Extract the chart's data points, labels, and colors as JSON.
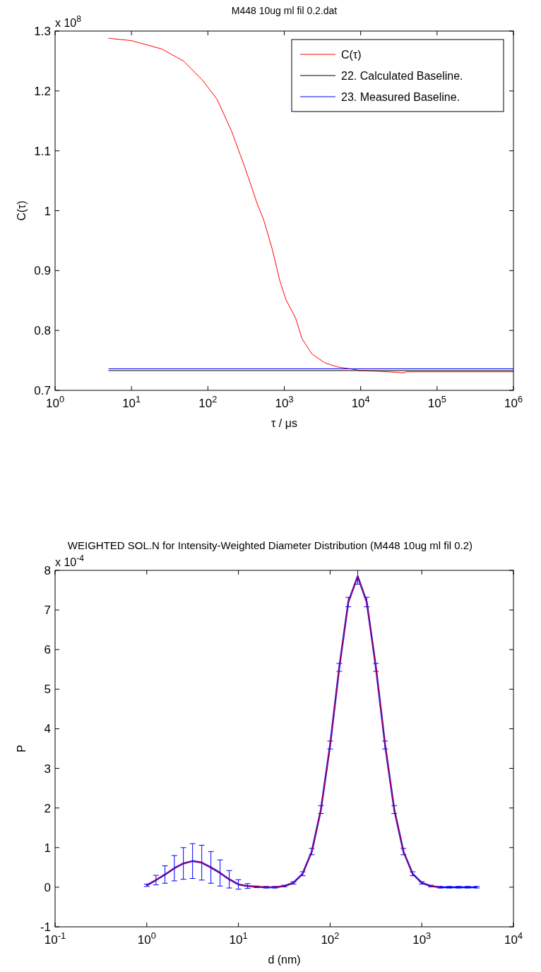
{
  "chart_data": [
    {
      "type": "line",
      "title": "M448 10ug ml fil 0.2.dat",
      "xlabel": "τ / μs",
      "ylabel": "C(τ)",
      "annotations": [
        "x 10$^{8}$"
      ],
      "log": "x",
      "legend": "top right",
      "xlim": [
        1,
        1000000
      ],
      "xticks": [
        {
          "value": 1,
          "label": "10$^{0}$"
        },
        {
          "value": 10,
          "label": "10$^{1}$"
        },
        {
          "value": 100,
          "label": "10$^{2}$"
        },
        {
          "value": 1000,
          "label": "10$^{3}$"
        },
        {
          "value": 10000,
          "label": "10$^{4}$"
        },
        {
          "value": 100000,
          "label": "10$^{5}$"
        },
        {
          "value": 1000000,
          "label": "10$^{6}$"
        }
      ],
      "ylim": [
        0.7,
        1.3
      ],
      "yticks": [
        0.7,
        0.8,
        0.9,
        1,
        1.1,
        1.2,
        1.3
      ],
      "series": [
        {
          "name": "C(τ)",
          "color": "#ff0000",
          "x": [
            5,
            10,
            25,
            48,
            85,
            132,
            204,
            302,
            447,
            537,
            692,
            871,
            1047,
            1413,
            1698,
            2291,
            3388,
            5012,
            7244,
            10000,
            15849,
            31623,
            35481,
            39811,
            100000,
            316228,
            1000000
          ],
          "values": [
            1.288,
            1.284,
            1.27,
            1.25,
            1.218,
            1.186,
            1.133,
            1.074,
            1.01,
            0.985,
            0.937,
            0.884,
            0.852,
            0.82,
            0.787,
            0.761,
            0.746,
            0.739,
            0.736,
            0.733,
            0.732,
            0.73,
            0.729,
            0.731,
            0.731,
            0.731,
            0.731
          ]
        },
        {
          "name": "22. Calculated Baseline.",
          "color": "#000000",
          "x": [
            5,
            1000000
          ],
          "values": [
            0.733,
            0.733
          ]
        },
        {
          "name": "23. Measured Baseline.",
          "color": "#0000ff",
          "x": [
            5,
            1000000
          ],
          "values": [
            0.736,
            0.736
          ]
        }
      ]
    },
    {
      "type": "line",
      "title": "WEIGHTED SOL.N for Intensity-Weighted Diameter Distribution (M448 10ug ml fil 0.2)",
      "xlabel": "d (nm)",
      "ylabel": "P",
      "annotations": [
        "x 10$^{-4}$"
      ],
      "log": "x",
      "xlim": [
        0.1,
        10000
      ],
      "xticks": [
        {
          "value": 0.1,
          "label": "10$^{-1}$"
        },
        {
          "value": 1,
          "label": "10$^{0}$"
        },
        {
          "value": 10,
          "label": "10$^{1}$"
        },
        {
          "value": 100,
          "label": "10$^{2}$"
        },
        {
          "value": 1000,
          "label": "10$^{3}$"
        },
        {
          "value": 10000,
          "label": "10$^{4}$"
        }
      ],
      "ylim": [
        -1,
        8
      ],
      "yticks": [
        -1,
        0,
        1,
        2,
        3,
        4,
        5,
        6,
        7,
        8
      ],
      "series": [
        {
          "color": "#0000ff",
          "x": [
            1,
            1.26,
            1.58,
            2,
            2.51,
            3.16,
            3.98,
            5.01,
            6.31,
            7.94,
            10,
            12.6,
            15.8,
            20,
            25.1,
            31.6,
            39.8,
            50.1,
            63.1,
            79.4,
            100,
            126,
            158,
            200,
            251,
            316,
            398,
            501,
            631,
            794,
            1000,
            1259,
            1585,
            1995,
            2512,
            3162,
            3981
          ],
          "values": [
            0.05,
            0.18,
            0.32,
            0.48,
            0.6,
            0.66,
            0.62,
            0.5,
            0.36,
            0.2,
            0.07,
            0.03,
            0.01,
            0,
            0,
            0.03,
            0.11,
            0.34,
            0.9,
            1.96,
            3.59,
            5.55,
            7.2,
            7.85,
            7.2,
            5.55,
            3.59,
            1.96,
            0.9,
            0.34,
            0.11,
            0.03,
            0,
            0,
            0,
            0,
            0
          ],
          "errors": [
            0.03,
            0.12,
            0.22,
            0.32,
            0.4,
            0.44,
            0.44,
            0.4,
            0.33,
            0.22,
            0.12,
            0.06,
            0.02,
            0.02,
            0.02,
            0.02,
            0.03,
            0.05,
            0.08,
            0.1,
            0.1,
            0.1,
            0.12,
            0.2,
            0.12,
            0.1,
            0.1,
            0.1,
            0.08,
            0.05,
            0.03,
            0.02,
            0.02,
            0.02,
            0.02,
            0.02,
            0.02
          ]
        },
        {
          "color": "#ff0000",
          "x": [
            1,
            1.26,
            1.58,
            2,
            2.51,
            3.16,
            3.98,
            5.01,
            6.31,
            7.94,
            10,
            12.6,
            15.8,
            20,
            25.1,
            31.6,
            39.8,
            50.1,
            63.1,
            79.4,
            100,
            126,
            158,
            200,
            251,
            316,
            398,
            501,
            631,
            794,
            1000,
            1259,
            1585
          ],
          "values": [
            0.05,
            0.18,
            0.32,
            0.48,
            0.6,
            0.66,
            0.62,
            0.5,
            0.36,
            0.2,
            0.07,
            0.03,
            0.01,
            0,
            0,
            0.03,
            0.11,
            0.34,
            0.9,
            1.96,
            3.59,
            5.55,
            7.2,
            7.85,
            7.2,
            5.55,
            3.59,
            1.96,
            0.9,
            0.34,
            0.11,
            0.03,
            0
          ]
        }
      ]
    }
  ]
}
